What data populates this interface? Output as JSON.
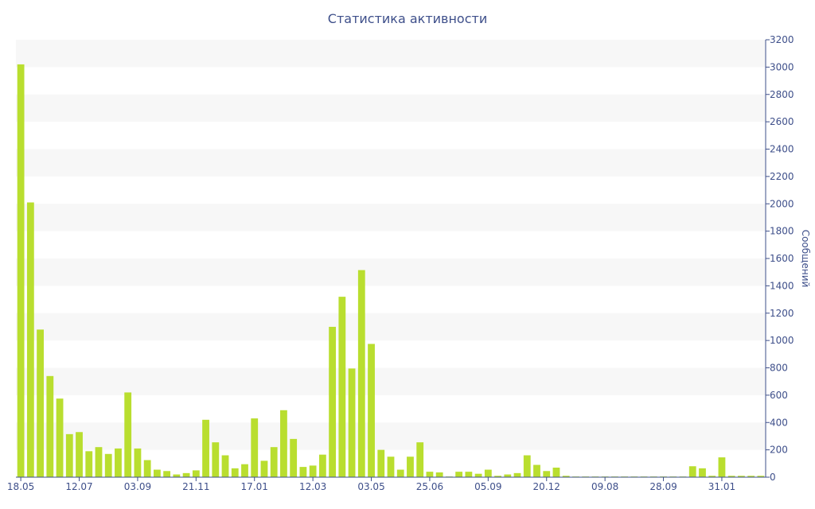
{
  "chart_data": {
    "type": "bar",
    "title": "Статистика активности",
    "xlabel": "",
    "ylabel": "Сообщений",
    "y_axis_side": "right",
    "ylim": [
      0,
      3200
    ],
    "y_ticks": [
      0,
      200,
      400,
      600,
      800,
      1000,
      1200,
      1400,
      1600,
      1800,
      2000,
      2200,
      2400,
      2600,
      2800,
      3000,
      3200
    ],
    "x_tick_labels": [
      {
        "label": "18.05",
        "index": 0
      },
      {
        "label": "12.07",
        "index": 6
      },
      {
        "label": "03.09",
        "index": 12
      },
      {
        "label": "21.11",
        "index": 18
      },
      {
        "label": "17.01",
        "index": 24
      },
      {
        "label": "12.03",
        "index": 30
      },
      {
        "label": "03.05",
        "index": 36
      },
      {
        "label": "25.06",
        "index": 42
      },
      {
        "label": "05.09",
        "index": 48
      },
      {
        "label": "20.12",
        "index": 54
      },
      {
        "label": "09.08",
        "index": 60
      },
      {
        "label": "28.09",
        "index": 66
      },
      {
        "label": "31.01",
        "index": 72
      }
    ],
    "grid": "alternating horizontal bands",
    "bar_color": "#b9de2f",
    "values": [
      3020,
      2010,
      1080,
      740,
      575,
      315,
      330,
      190,
      220,
      170,
      210,
      620,
      210,
      125,
      55,
      45,
      20,
      30,
      50,
      420,
      255,
      160,
      65,
      95,
      430,
      120,
      220,
      490,
      280,
      75,
      85,
      165,
      1100,
      1320,
      795,
      1515,
      975,
      200,
      150,
      55,
      150,
      255,
      40,
      35,
      5,
      40,
      40,
      25,
      55,
      10,
      20,
      30,
      160,
      90,
      45,
      70,
      10,
      5,
      5,
      5,
      5,
      5,
      5,
      5,
      5,
      5,
      5,
      5,
      5,
      80,
      65,
      10,
      145,
      10,
      10,
      10,
      10
    ]
  }
}
